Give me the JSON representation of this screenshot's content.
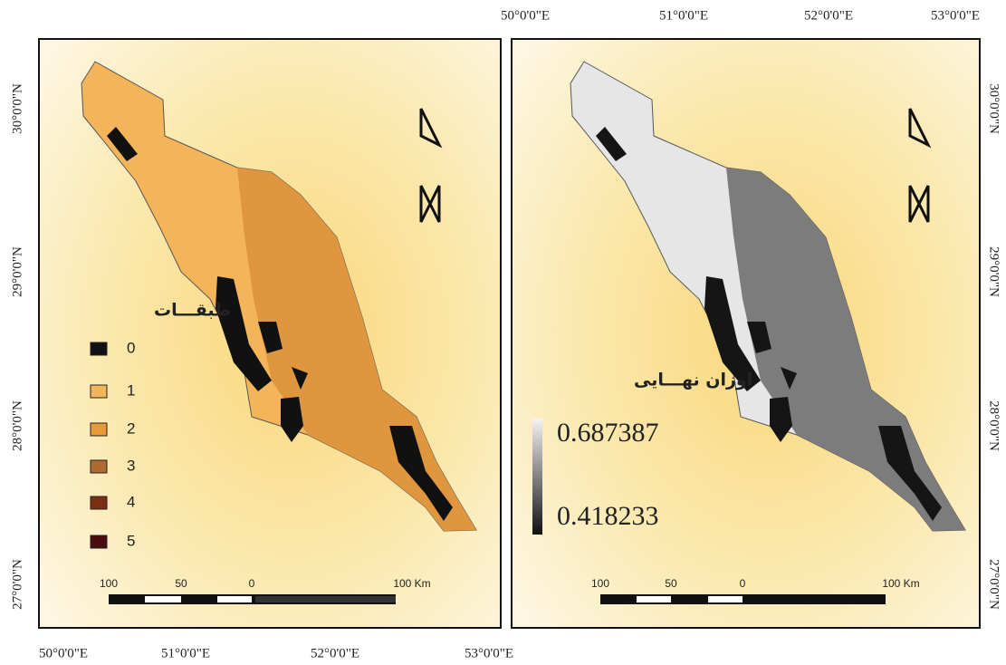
{
  "left_map": {
    "legend_title": "طبقـــات",
    "legend_items": [
      "0",
      "1",
      "2",
      "3",
      "4",
      "5"
    ],
    "x_labels": [
      "50°0'0\"E",
      "51°0'0\"E",
      "52°0'0\"E",
      "53°0'0\"E"
    ],
    "y_labels": [
      "30°0'0\"N",
      "29°0'0\"N",
      "28°0'0\"N",
      "27°0'0\"N"
    ],
    "scale_labels": [
      "100",
      "50",
      "0",
      "100 Km"
    ]
  },
  "right_map": {
    "legend_title": "اوزان نهـــایی",
    "legend_max": "0.687387",
    "legend_min": "0.418233",
    "x_labels": [
      "50°0'0\"E",
      "51°0'0\"E",
      "52°0'0\"E",
      "53°0'0\"E"
    ],
    "y_labels": [
      "30°0'0\"N",
      "29°0'0\"N",
      "28°0'0\"N",
      "27°0'0\"N"
    ],
    "scale_labels": [
      "100",
      "50",
      "0",
      "100 Km"
    ]
  }
}
